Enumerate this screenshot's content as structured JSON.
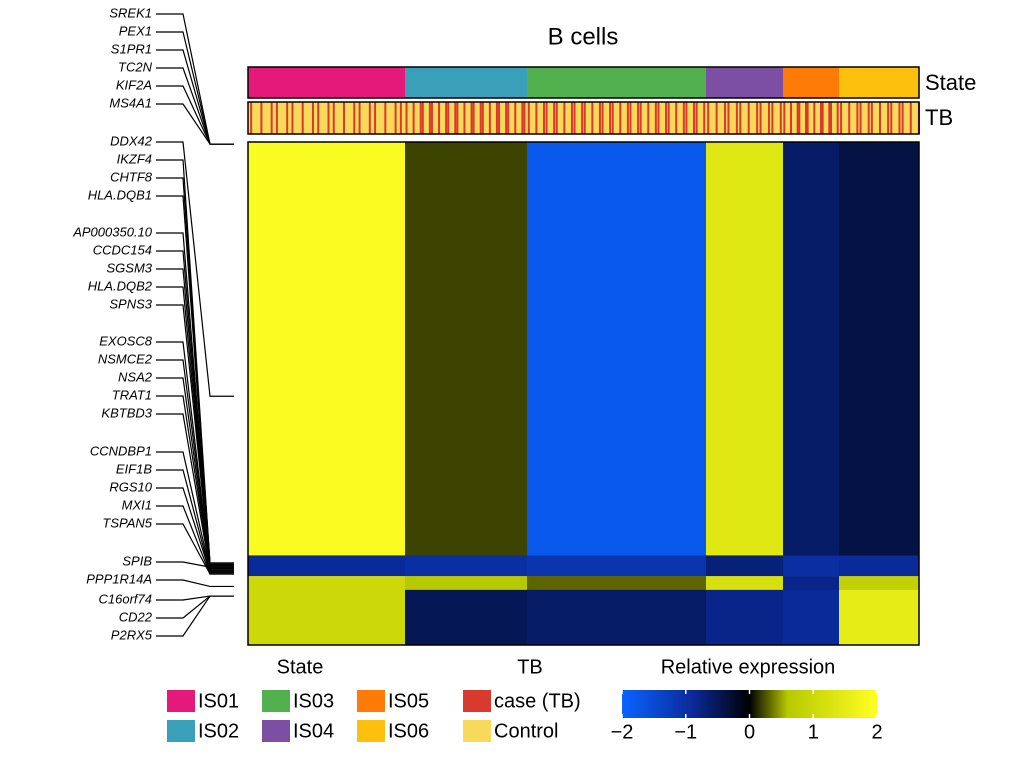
{
  "chart_data": {
    "type": "heatmap",
    "title": "B cells",
    "states": {
      "title": "State",
      "names": [
        "IS01",
        "IS02",
        "IS03",
        "IS04",
        "IS05",
        "IS06"
      ],
      "colors": [
        "#e5197a",
        "#3a9fb9",
        "#53b04f",
        "#7c4fa5",
        "#ff7b07",
        "#fdc10d"
      ],
      "sizes": [
        157,
        122,
        179,
        77,
        56,
        80
      ]
    },
    "tb": {
      "title": "TB",
      "names": [
        "case (TB)",
        "Control"
      ],
      "colors": [
        "#d93a2e",
        "#f9d95a"
      ],
      "case_share": [
        0.12,
        0.2,
        0.18,
        0.15,
        0.22,
        0.16
      ]
    },
    "row_blocks": {
      "sizes": [
        300,
        15,
        10,
        40
      ],
      "values": [
        [
          1.9,
          0.2,
          -1.8,
          1.4,
          -0.6,
          -0.4
        ],
        [
          -0.9,
          -1.0,
          -1.1,
          -0.7,
          -1.0,
          -0.9
        ],
        [
          1.0,
          0.6,
          0.3,
          1.2,
          -0.8,
          0.8
        ],
        [
          1.0,
          -0.5,
          -0.6,
          -0.8,
          -0.9,
          1.5
        ]
      ]
    },
    "genes": [
      "SREK1",
      "PEX1",
      "S1PR1",
      "TC2N",
      "KIF2A",
      "MS4A1",
      "DDX42",
      "IKZF4",
      "CHTF8",
      "HLA.DQB1",
      "AP000350.10",
      "CCDC154",
      "SGSM3",
      "HLA.DQB2",
      "SPNS3",
      "EXOSC8",
      "NSMCE2",
      "NSA2",
      "TRAT1",
      "KBTBD3",
      "CCNDBP1",
      "EIF1B",
      "RGS10",
      "MXI1",
      "TSPAN5",
      "SPIB",
      "PPP1R14A",
      "C16orf74",
      "CD22",
      "P2RX5"
    ],
    "gene_rows": [
      1,
      1,
      1,
      1,
      1,
      1,
      184,
      305,
      305,
      306,
      306,
      307,
      307,
      308,
      308,
      309,
      309,
      310,
      310,
      311,
      311,
      312,
      312,
      313,
      313,
      308,
      322,
      329,
      329,
      329
    ],
    "colorbar": {
      "title": "Relative expression",
      "lim": [
        -2,
        2
      ],
      "ticks": [
        {
          "value": -2,
          "label": "−2"
        },
        {
          "value": -1,
          "label": "−1"
        },
        0,
        1,
        2
      ],
      "stops": [
        {
          "value": -2,
          "color": "#0a64ff"
        },
        {
          "value": -0.9,
          "color": "#0a2a9a"
        },
        {
          "value": 0,
          "color": "#000000"
        },
        {
          "value": 0.6,
          "color": "#b7c900"
        },
        {
          "value": 2,
          "color": "#ffff22"
        }
      ]
    }
  }
}
